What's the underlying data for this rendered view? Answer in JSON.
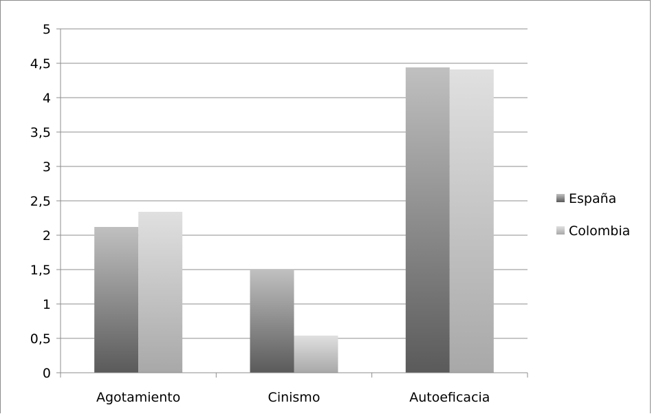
{
  "chart_data": {
    "type": "bar",
    "title": "",
    "xlabel": "",
    "ylabel": "",
    "categories": [
      "Agotamiento",
      "Cinismo",
      "Autoeficacia"
    ],
    "series": [
      {
        "name": "España",
        "values": [
          2.12,
          1.5,
          4.44
        ]
      },
      {
        "name": "Colombia",
        "values": [
          2.34,
          0.54,
          4.41
        ]
      }
    ],
    "ylim": [
      0,
      5
    ],
    "yticks": [
      "0",
      "0,5",
      "1",
      "1,5",
      "2",
      "2,5",
      "3",
      "3,5",
      "4",
      "4,5",
      "5"
    ],
    "grid": true,
    "legend_position": "right",
    "colors": {
      "España": {
        "top": "#c0c0c0",
        "bottom": "#5a5a5a"
      },
      "Colombia": {
        "top": "#e0e0e0",
        "bottom": "#a8a8a8"
      },
      "gridline": "#8c8c8c",
      "axis": "#8c8c8c"
    }
  }
}
